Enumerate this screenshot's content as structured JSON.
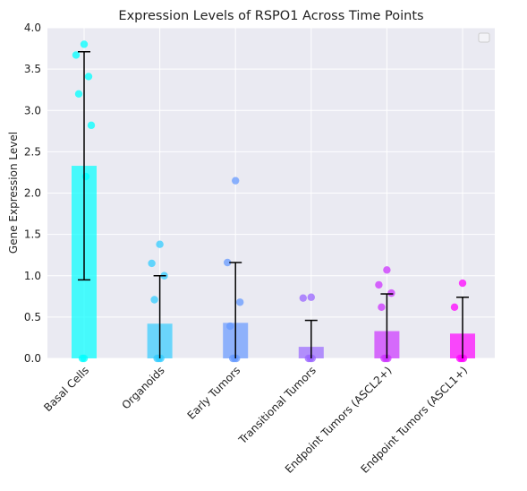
{
  "chart_data": {
    "type": "bar",
    "title": "Expression Levels of RSPO1 Across Time Points",
    "xlabel": "",
    "ylabel": "Gene Expression Level",
    "ylim": [
      0,
      4.0
    ],
    "yticks": [
      "0.0",
      "0.5",
      "1.0",
      "1.5",
      "2.0",
      "2.5",
      "3.0",
      "3.5",
      "4.0"
    ],
    "grid": true,
    "legend": "top-right (empty)",
    "categories": [
      "Basal Cells",
      "Organoids",
      "Early Tumors",
      "Transitional Tumors",
      "Endpoint Tumors (ASCL2+)",
      "Endpoint Tumors (ASCL1+)"
    ],
    "values": [
      2.33,
      0.42,
      0.43,
      0.14,
      0.33,
      0.3
    ],
    "errors": [
      1.38,
      0.58,
      0.73,
      0.32,
      0.45,
      0.44
    ],
    "colors": [
      "#00ffff",
      "#33ccff",
      "#6699ff",
      "#9966ff",
      "#cc33ff",
      "#ff00ff"
    ],
    "points": [
      [
        3.8,
        3.67,
        3.41,
        3.2,
        2.82,
        2.2,
        0.0,
        0.0
      ],
      [
        1.38,
        1.15,
        1.0,
        0.71,
        0.0,
        0.0,
        0.0
      ],
      [
        2.15,
        1.16,
        0.68,
        0.39,
        0.0,
        0.0,
        0.0
      ],
      [
        0.74,
        0.73,
        0.0,
        0.0,
        0.0
      ],
      [
        1.07,
        0.89,
        0.79,
        0.62,
        0.0,
        0.0,
        0.0
      ],
      [
        0.91,
        0.62,
        0.0,
        0.0,
        0.0
      ]
    ]
  }
}
